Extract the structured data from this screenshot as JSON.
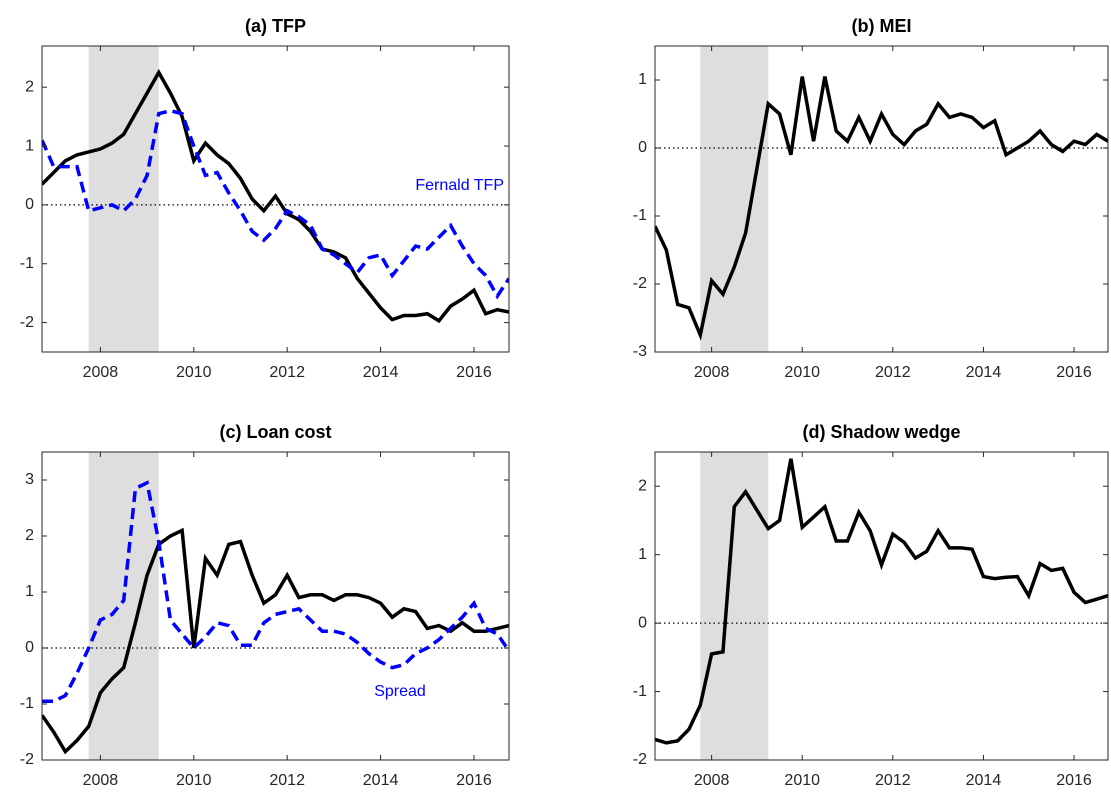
{
  "chart_data": [
    {
      "type": "line",
      "title": "(a) TFP",
      "x": [
        2006.75,
        2007,
        2007.25,
        2007.5,
        2007.75,
        2008,
        2008.25,
        2008.5,
        2008.75,
        2009,
        2009.25,
        2009.5,
        2009.75,
        2010,
        2010.25,
        2010.5,
        2010.75,
        2011,
        2011.25,
        2011.5,
        2011.75,
        2012,
        2012.25,
        2012.5,
        2012.75,
        2013,
        2013.25,
        2013.5,
        2013.75,
        2014,
        2014.25,
        2014.5,
        2014.75,
        2015,
        2015.25,
        2015.5,
        2015.75,
        2016,
        2016.25,
        2016.5,
        2016.75
      ],
      "series": [
        {
          "color": "#000000",
          "values": [
            0.35,
            0.55,
            0.75,
            0.85,
            0.9,
            0.95,
            1.05,
            1.2,
            1.55,
            1.9,
            2.25,
            1.9,
            1.5,
            0.75,
            1.05,
            0.85,
            0.7,
            0.45,
            0.1,
            -0.1,
            0.15,
            -0.15,
            -0.25,
            -0.45,
            -0.75,
            -0.8,
            -0.9,
            -1.25,
            -1.5,
            -1.75,
            -1.95,
            -1.88,
            -1.88,
            -1.85,
            -1.97,
            -1.72,
            -1.6,
            -1.45,
            -1.85,
            -1.78,
            -1.82
          ]
        },
        {
          "name": "Fernald TFP",
          "color": "#0000ff",
          "dashed": true,
          "values": [
            1.1,
            0.65,
            0.65,
            0.65,
            -0.1,
            -0.05,
            0.0,
            -0.1,
            0.1,
            0.5,
            1.55,
            1.6,
            1.55,
            1.0,
            0.5,
            0.55,
            0.2,
            -0.1,
            -0.45,
            -0.6,
            -0.4,
            -0.1,
            -0.2,
            -0.35,
            -0.75,
            -0.85,
            -1.0,
            -1.15,
            -0.9,
            -0.85,
            -1.2,
            -0.95,
            -0.7,
            -0.75,
            -0.55,
            -0.35,
            -0.7,
            -1.0,
            -1.2,
            -1.55,
            -1.25
          ]
        }
      ],
      "shade": [
        2007.75,
        2009.25
      ],
      "xlim": [
        2006.75,
        2016.75
      ],
      "xticks": [
        2008,
        2010,
        2012,
        2014,
        2016
      ],
      "ylim": [
        -2.5,
        2.7
      ],
      "yticks": [
        -2,
        -1,
        0,
        1,
        2
      ]
    },
    {
      "type": "line",
      "title": "(b) MEI",
      "x": [
        2006.75,
        2007,
        2007.25,
        2007.5,
        2007.75,
        2008,
        2008.25,
        2008.5,
        2008.75,
        2009,
        2009.25,
        2009.5,
        2009.75,
        2010,
        2010.25,
        2010.5,
        2010.75,
        2011,
        2011.25,
        2011.5,
        2011.75,
        2012,
        2012.25,
        2012.5,
        2012.75,
        2013,
        2013.25,
        2013.5,
        2013.75,
        2014,
        2014.25,
        2014.5,
        2014.75,
        2015,
        2015.25,
        2015.5,
        2015.75,
        2016,
        2016.25,
        2016.5,
        2016.75
      ],
      "series": [
        {
          "color": "#000000",
          "values": [
            -1.15,
            -1.5,
            -2.3,
            -2.35,
            -2.75,
            -1.95,
            -2.15,
            -1.75,
            -1.25,
            -0.3,
            0.65,
            0.5,
            -0.1,
            1.05,
            0.1,
            1.05,
            0.25,
            0.1,
            0.45,
            0.1,
            0.5,
            0.2,
            0.05,
            0.25,
            0.35,
            0.65,
            0.45,
            0.5,
            0.45,
            0.3,
            0.4,
            -0.1,
            0.0,
            0.1,
            0.25,
            0.05,
            -0.05,
            0.1,
            0.05,
            0.2,
            0.1
          ]
        }
      ],
      "shade": [
        2007.75,
        2009.25
      ],
      "xlim": [
        2006.75,
        2016.75
      ],
      "xticks": [
        2008,
        2010,
        2012,
        2014,
        2016
      ],
      "ylim": [
        -3,
        1.5
      ],
      "yticks": [
        -3,
        -2,
        -1,
        0,
        1
      ]
    },
    {
      "type": "line",
      "title": "(c) Loan cost",
      "x": [
        2006.75,
        2007,
        2007.25,
        2007.5,
        2007.75,
        2008,
        2008.25,
        2008.5,
        2008.75,
        2009,
        2009.25,
        2009.5,
        2009.75,
        2010,
        2010.25,
        2010.5,
        2010.75,
        2011,
        2011.25,
        2011.5,
        2011.75,
        2012,
        2012.25,
        2012.5,
        2012.75,
        2013,
        2013.25,
        2013.5,
        2013.75,
        2014,
        2014.25,
        2014.5,
        2014.75,
        2015,
        2015.25,
        2015.5,
        2015.75,
        2016,
        2016.25,
        2016.5,
        2016.75
      ],
      "series": [
        {
          "color": "#000000",
          "values": [
            -1.2,
            -1.5,
            -1.85,
            -1.65,
            -1.4,
            -0.8,
            -0.55,
            -0.35,
            0.45,
            1.3,
            1.85,
            2.0,
            2.1,
            0.0,
            1.6,
            1.3,
            1.85,
            1.9,
            1.3,
            0.8,
            0.95,
            1.3,
            0.9,
            0.95,
            0.95,
            0.85,
            0.95,
            0.95,
            0.9,
            0.8,
            0.55,
            0.7,
            0.65,
            0.35,
            0.4,
            0.3,
            0.45,
            0.3,
            0.3,
            0.35,
            0.4
          ]
        },
        {
          "name": "Spread",
          "color": "#0000ff",
          "dashed": true,
          "values": [
            -0.95,
            -0.95,
            -0.85,
            -0.45,
            0.0,
            0.5,
            0.6,
            0.85,
            2.85,
            2.95,
            1.9,
            0.5,
            0.25,
            0.0,
            0.2,
            0.45,
            0.4,
            0.05,
            0.05,
            0.45,
            0.6,
            0.65,
            0.7,
            0.5,
            0.3,
            0.3,
            0.25,
            0.1,
            -0.1,
            -0.25,
            -0.35,
            -0.3,
            -0.1,
            0.0,
            0.15,
            0.35,
            0.55,
            0.8,
            0.35,
            0.25,
            -0.05
          ]
        }
      ],
      "shade": [
        2007.75,
        2009.25
      ],
      "xlim": [
        2006.75,
        2016.75
      ],
      "xticks": [
        2008,
        2010,
        2012,
        2014,
        2016
      ],
      "ylim": [
        -2,
        3.5
      ],
      "yticks": [
        -2,
        -1,
        0,
        1,
        2,
        3
      ]
    },
    {
      "type": "line",
      "title": "(d) Shadow wedge",
      "x": [
        2006.75,
        2007,
        2007.25,
        2007.5,
        2007.75,
        2008,
        2008.25,
        2008.5,
        2008.75,
        2009,
        2009.25,
        2009.5,
        2009.75,
        2010,
        2010.25,
        2010.5,
        2010.75,
        2011,
        2011.25,
        2011.5,
        2011.75,
        2012,
        2012.25,
        2012.5,
        2012.75,
        2013,
        2013.25,
        2013.5,
        2013.75,
        2014,
        2014.25,
        2014.5,
        2014.75,
        2015,
        2015.25,
        2015.5,
        2015.75,
        2016,
        2016.25,
        2016.5,
        2016.75
      ],
      "series": [
        {
          "color": "#000000",
          "values": [
            -1.7,
            -1.75,
            -1.72,
            -1.55,
            -1.2,
            -0.45,
            -0.42,
            1.7,
            1.92,
            1.65,
            1.38,
            1.5,
            2.4,
            1.4,
            1.55,
            1.7,
            1.2,
            1.2,
            1.62,
            1.35,
            0.85,
            1.3,
            1.18,
            0.95,
            1.05,
            1.35,
            1.1,
            1.1,
            1.08,
            0.68,
            0.65,
            0.67,
            0.68,
            0.4,
            0.87,
            0.77,
            0.8,
            0.45,
            0.3,
            0.35,
            0.4
          ]
        }
      ],
      "shade": [
        2007.75,
        2009.25
      ],
      "xlim": [
        2006.75,
        2016.75
      ],
      "xticks": [
        2008,
        2010,
        2012,
        2014,
        2016
      ],
      "ylim": [
        -2,
        2.5
      ],
      "yticks": [
        -2,
        -1,
        0,
        1,
        2
      ]
    }
  ]
}
